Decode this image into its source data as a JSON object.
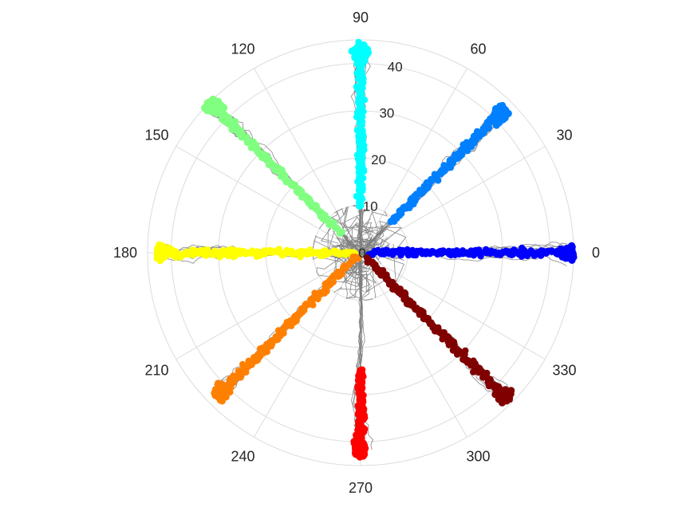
{
  "chart_data": {
    "type": "polar-scatter",
    "title": "",
    "angle_unit": "degrees",
    "angle_ticks": [
      "0",
      "30",
      "60",
      "90",
      "120",
      "150",
      "180",
      "210",
      "240",
      "270",
      "300",
      "330"
    ],
    "radial_ticks": [
      "0",
      "10",
      "20",
      "30",
      "40"
    ],
    "rlim": [
      0,
      45
    ],
    "grid": true,
    "trajectory_color": "#808080",
    "series": [
      {
        "angle": 0,
        "color": "#0000ff",
        "r_start": 2,
        "r_end": 45
      },
      {
        "angle": 45,
        "color": "#0080ff",
        "r_start": 9,
        "r_end": 43
      },
      {
        "angle": 90,
        "color": "#00ffff",
        "r_start": 10,
        "r_end": 44
      },
      {
        "angle": 135,
        "color": "#80ff80",
        "r_start": 6,
        "r_end": 45
      },
      {
        "angle": 180,
        "color": "#ffff00",
        "r_start": 1,
        "r_end": 43
      },
      {
        "angle": 225,
        "color": "#ff8000",
        "r_start": 1,
        "r_end": 43
      },
      {
        "angle": 270,
        "color": "#ff0000",
        "r_start": 25,
        "r_end": 43
      },
      {
        "angle": 315,
        "color": "#800000",
        "r_start": 2,
        "r_end": 44
      }
    ]
  }
}
